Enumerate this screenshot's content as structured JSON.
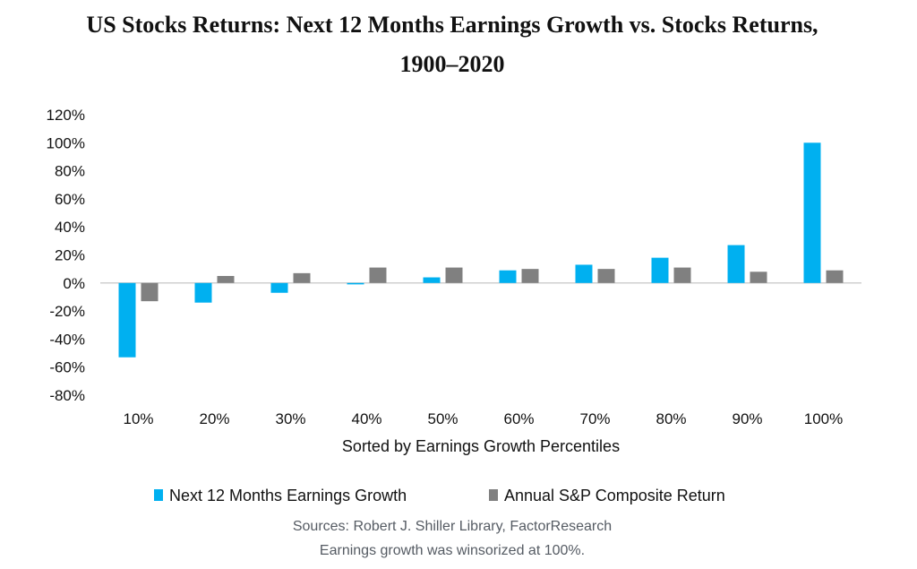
{
  "chart_data": {
    "type": "bar",
    "title_line1": "US Stocks Returns: Next 12 Months Earnings Growth vs. Stocks Returns,",
    "title_line2": "1900–2020",
    "xlabel": "Sorted by Earnings Growth Percentiles",
    "categories": [
      "10%",
      "20%",
      "30%",
      "40%",
      "50%",
      "60%",
      "70%",
      "80%",
      "90%",
      "100%"
    ],
    "y_ticks": [
      "120%",
      "100%",
      "80%",
      "60%",
      "40%",
      "20%",
      "0%",
      "-20%",
      "-40%",
      "-60%",
      "-80%"
    ],
    "ylim": [
      -80,
      120
    ],
    "series": [
      {
        "name": "Next 12 Months Earnings Growth",
        "color": "#00b0f0",
        "values": [
          -53,
          -14,
          -7,
          -1,
          4,
          9,
          13,
          18,
          27,
          100
        ]
      },
      {
        "name": "Annual S&P Composite Return",
        "color": "#808080",
        "values": [
          -13,
          5,
          7,
          11,
          11,
          10,
          10,
          11,
          8,
          9
        ]
      }
    ],
    "legend_position": "bottom",
    "grid": false
  },
  "notes": {
    "line1": "Sources: Robert J. Shiller Library, FactorResearch",
    "line2": "Earnings growth was winsorized at 100%."
  }
}
